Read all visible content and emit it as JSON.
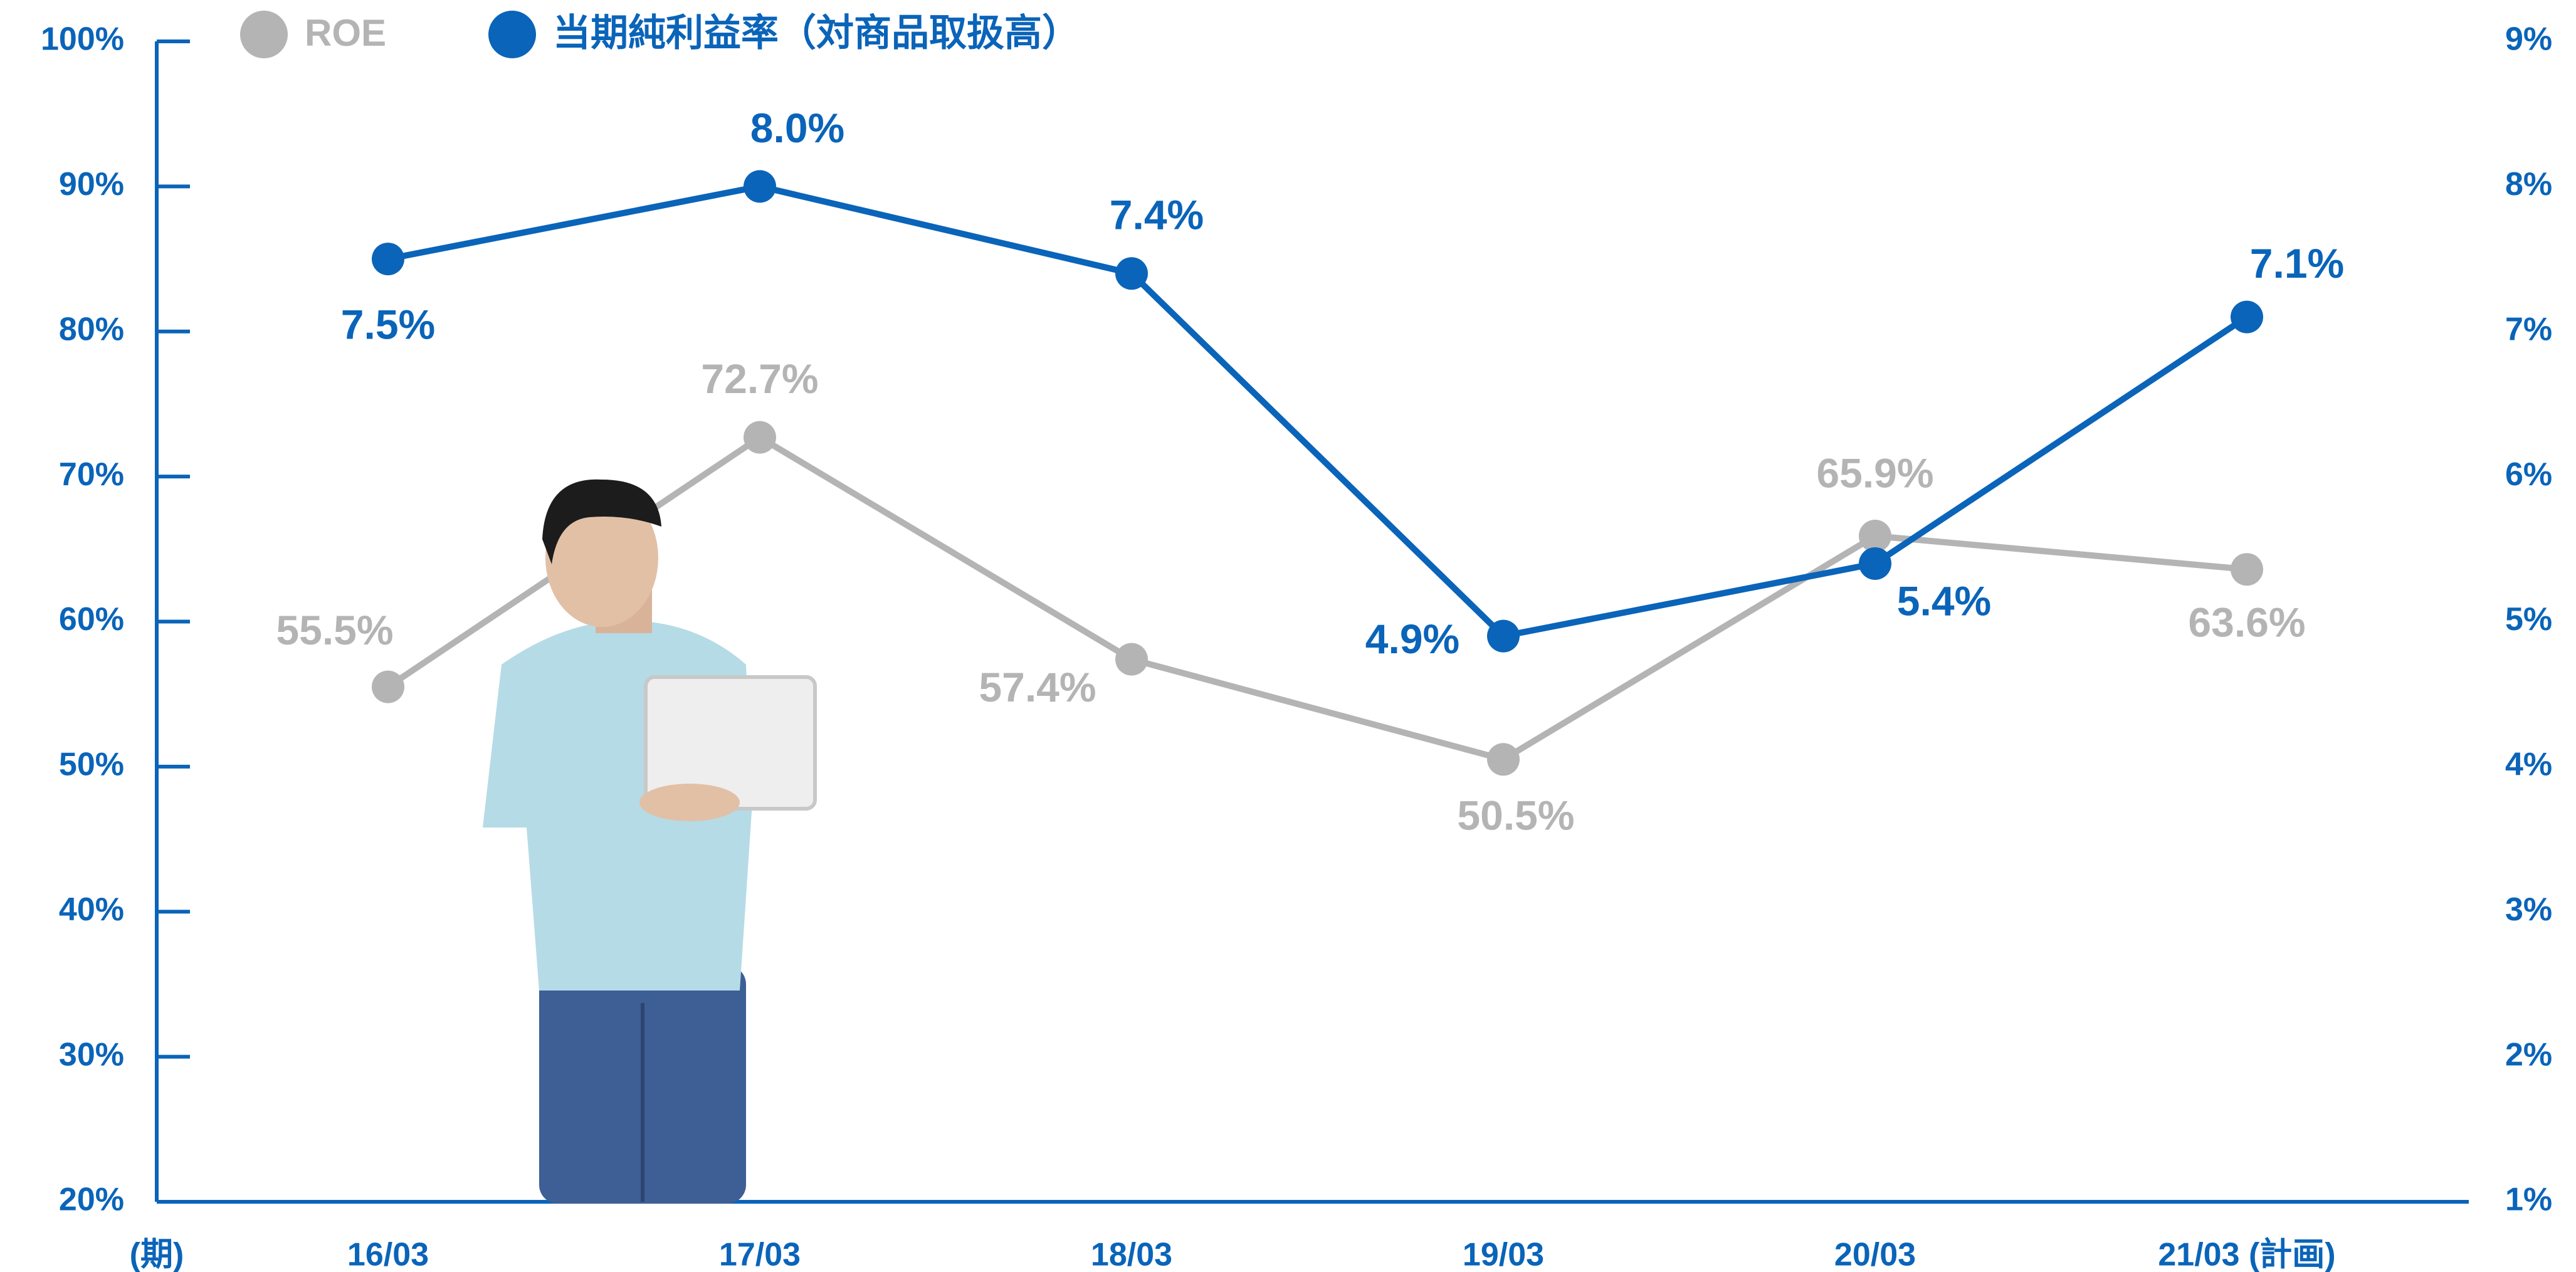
{
  "chart_data": {
    "type": "line",
    "x_label": "(期)",
    "categories": [
      "16/03",
      "17/03",
      "18/03",
      "19/03",
      "20/03",
      "21/03 (計画)"
    ],
    "series": [
      {
        "name": "ROE",
        "color": "#b4b4b4",
        "values": [
          55.5,
          72.7,
          57.4,
          50.5,
          65.9,
          63.6
        ],
        "value_labels": [
          "55.5%",
          "72.7%",
          "57.4%",
          "50.5%",
          "65.9%",
          "63.6%"
        ]
      },
      {
        "name": "当期純利益率（対商品取扱高）",
        "color": "#0a64b9",
        "axis": "y2",
        "values": [
          7.5,
          8.0,
          7.4,
          4.9,
          5.4,
          7.1
        ],
        "value_labels": [
          "7.5%",
          "8.0%",
          "7.4%",
          "4.9%",
          "5.4%",
          "7.1%"
        ]
      }
    ],
    "ylim": [
      20,
      100
    ],
    "yticks": [
      {
        "value": 20,
        "label": "20%"
      },
      {
        "value": 30,
        "label": "30%"
      },
      {
        "value": 40,
        "label": "40%"
      },
      {
        "value": 50,
        "label": "50%"
      },
      {
        "value": 60,
        "label": "60%"
      },
      {
        "value": 70,
        "label": "70%"
      },
      {
        "value": 80,
        "label": "80%"
      },
      {
        "value": 90,
        "label": "90%"
      },
      {
        "value": 100,
        "label": "100%"
      }
    ],
    "y2lim": [
      1,
      9
    ],
    "y2ticks": [
      {
        "value": 1,
        "label": "1%"
      },
      {
        "value": 2,
        "label": "2%"
      },
      {
        "value": 3,
        "label": "3%"
      },
      {
        "value": 4,
        "label": "4%"
      },
      {
        "value": 5,
        "label": "5%"
      },
      {
        "value": 6,
        "label": "6%"
      },
      {
        "value": 7,
        "label": "7%"
      },
      {
        "value": 8,
        "label": "8%"
      },
      {
        "value": 9,
        "label": "9%"
      }
    ],
    "axis_color": "#0a64b9",
    "legend": "top-left"
  }
}
